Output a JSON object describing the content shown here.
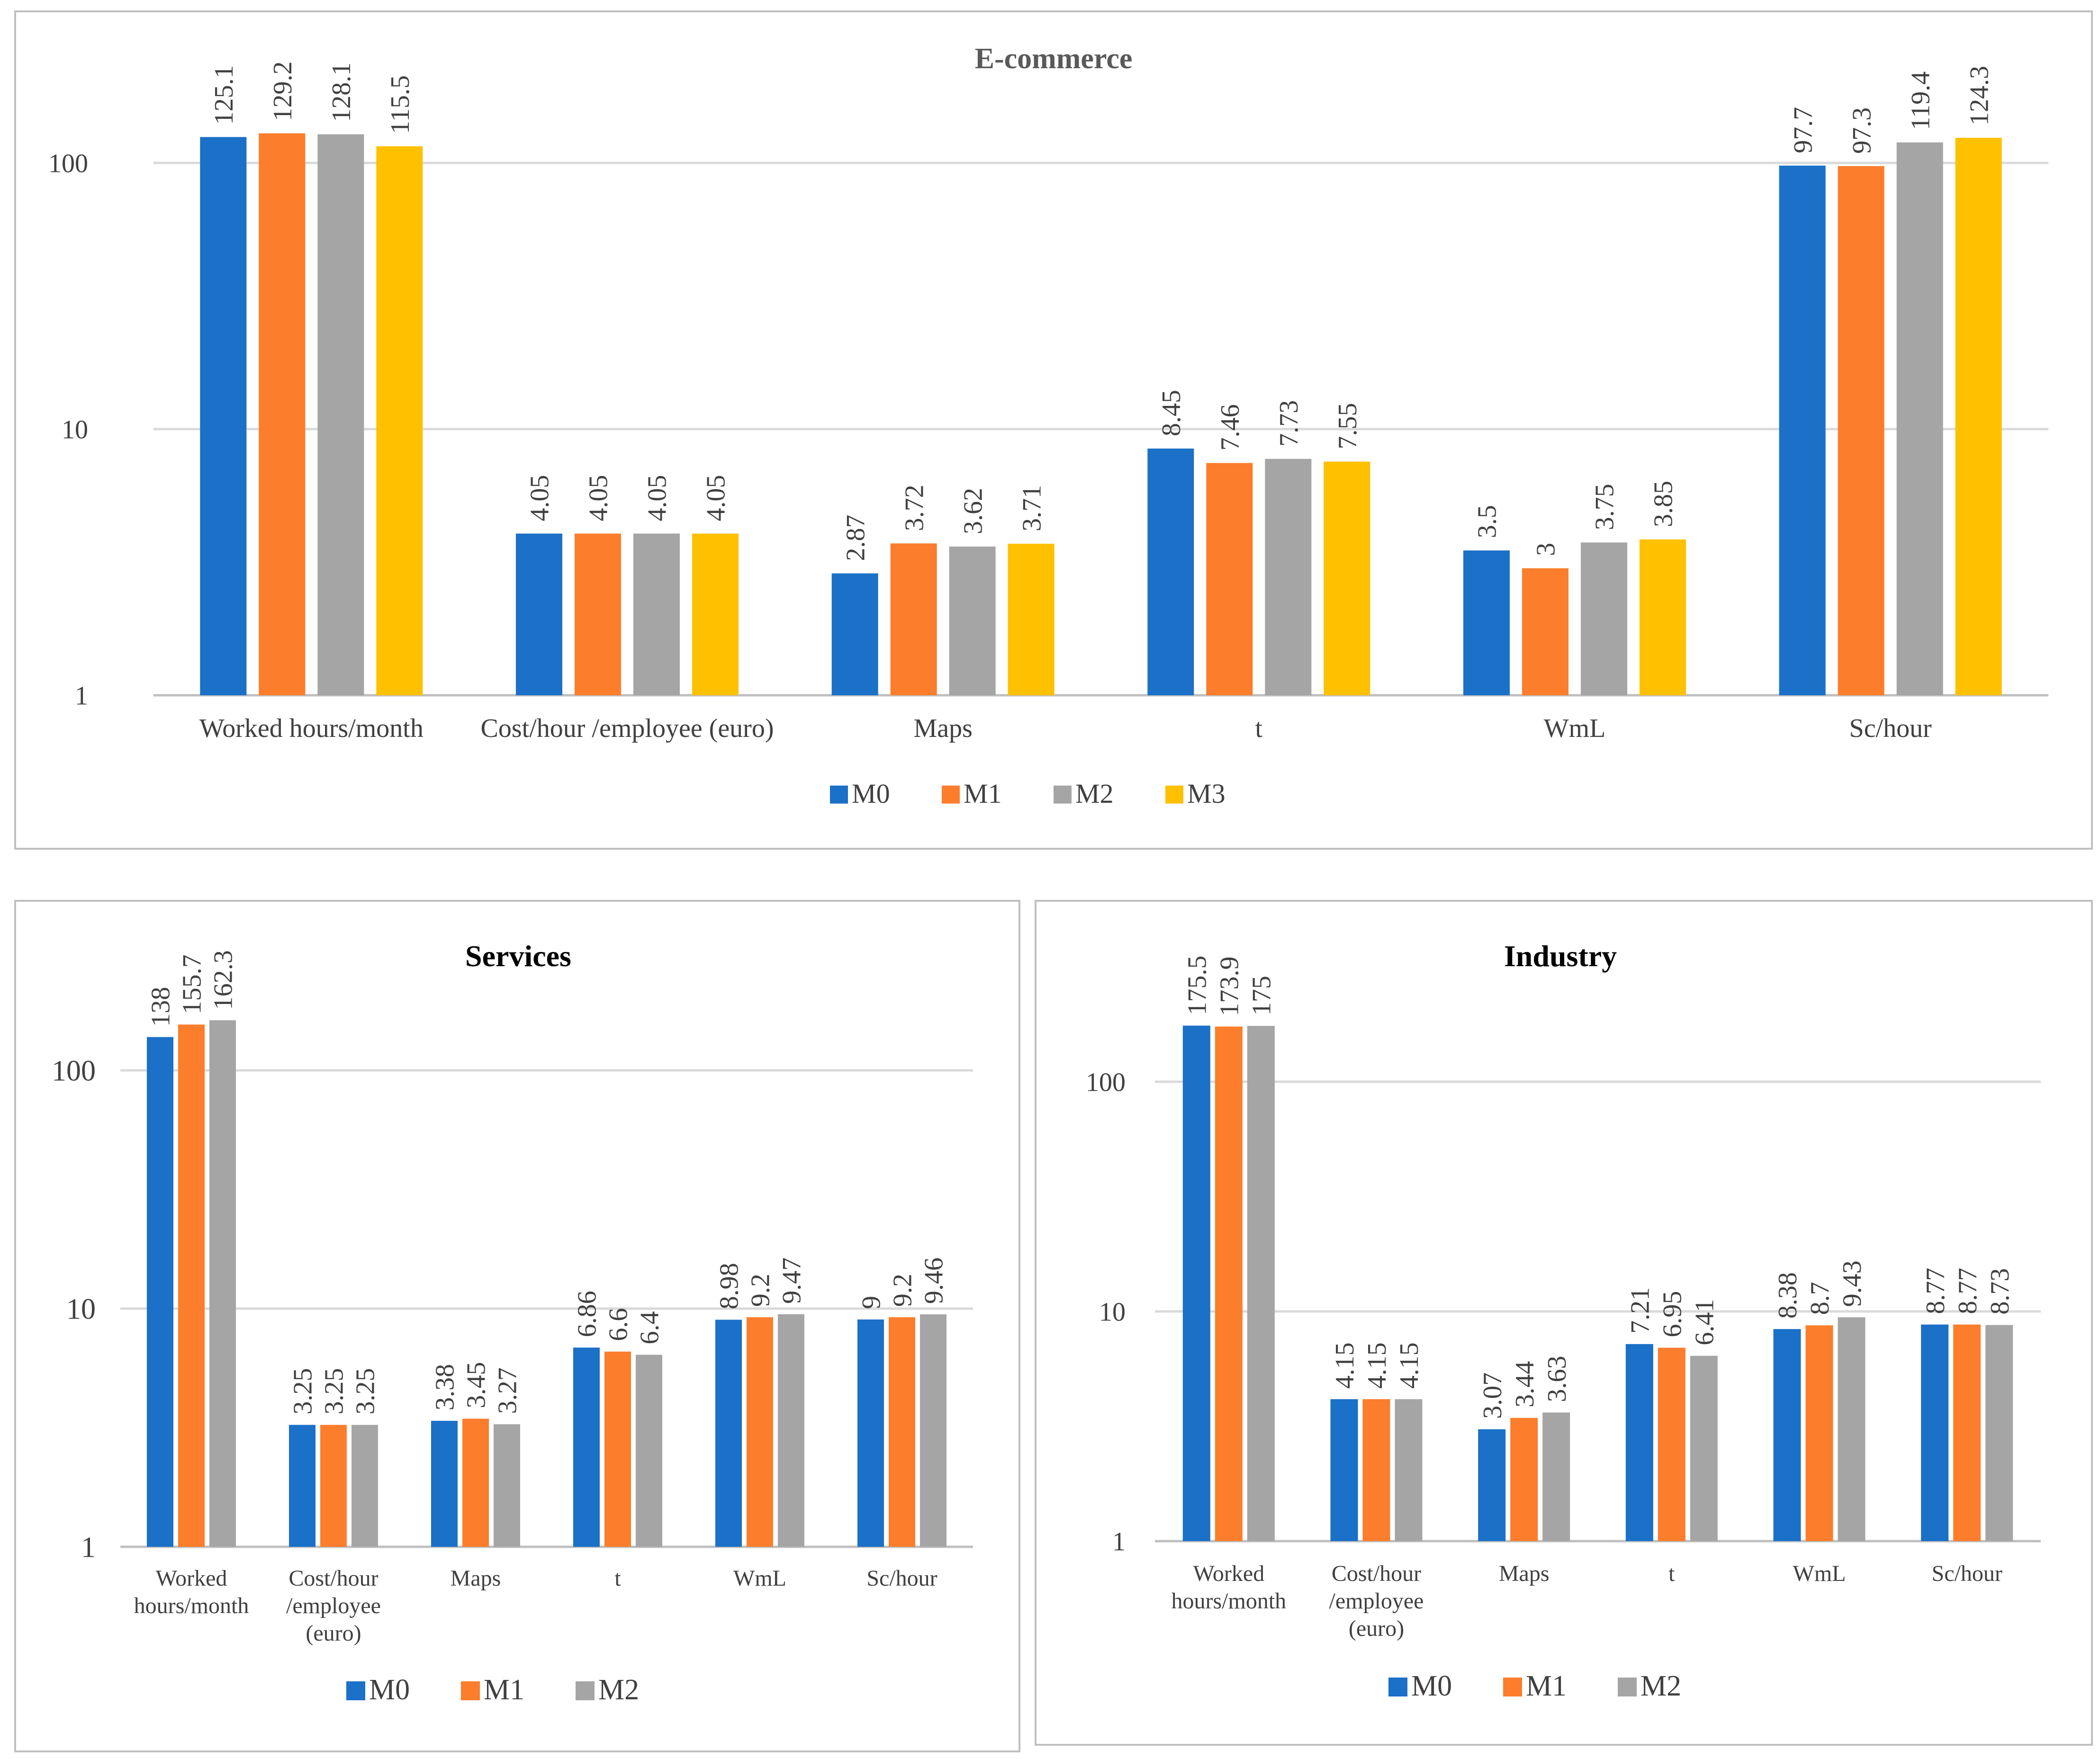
{
  "colors": {
    "M0": "#1b70c7",
    "M1": "#fc7d2c",
    "M2": "#a5a5a5",
    "M3": "#ffc000",
    "grid": "#d9d9d9",
    "text": "#404040",
    "title_ecom": "#595959"
  },
  "chart_data": [
    {
      "id": "ecom",
      "type": "bar",
      "title": "E-commerce",
      "yscale": "log",
      "ylim": [
        1,
        200
      ],
      "yticks": [
        1,
        10,
        100
      ],
      "ytick_labels": [
        "1",
        "10",
        "100"
      ],
      "categories": [
        "Worked hours/month",
        "Cost/hour /employee (euro)",
        "Maps",
        "t",
        "WmL",
        "Sc/hour"
      ],
      "series": [
        {
          "name": "M0",
          "values": [
            125.1,
            4.05,
            2.87,
            8.45,
            3.5,
            97.7
          ],
          "labels": [
            "125.1",
            "4.05",
            "2.87",
            "8.45",
            "3.5",
            "97.7"
          ]
        },
        {
          "name": "M1",
          "values": [
            129.2,
            4.05,
            3.72,
            7.46,
            3,
            97.3
          ],
          "labels": [
            "129.2",
            "4.05",
            "3.72",
            "7.46",
            "3",
            "97.3"
          ]
        },
        {
          "name": "M2",
          "values": [
            128.1,
            4.05,
            3.62,
            7.73,
            3.75,
            119.4
          ],
          "labels": [
            "128.1",
            "4.05",
            "3.62",
            "7.73",
            "3.75",
            "119.4"
          ]
        },
        {
          "name": "M3",
          "values": [
            115.5,
            4.05,
            3.71,
            7.55,
            3.85,
            124.3
          ],
          "labels": [
            "115.5",
            "4.05",
            "3.71",
            "7.55",
            "3.85",
            "124.3"
          ]
        }
      ],
      "legend": "bottom"
    },
    {
      "id": "serv",
      "type": "bar",
      "title": "Services",
      "yscale": "log",
      "ylim": [
        1,
        200
      ],
      "yticks": [
        1,
        10,
        100
      ],
      "ytick_labels": [
        "1",
        "10",
        "100"
      ],
      "categories": [
        "Worked hours/month",
        "Cost/hour /employee (euro)",
        "Maps",
        "t",
        "WmL",
        "Sc/hour"
      ],
      "category_lines": [
        [
          "Worked",
          "hours/month"
        ],
        [
          "Cost/hour",
          "/employee",
          "(euro)"
        ],
        [
          "Maps"
        ],
        [
          "t"
        ],
        [
          "WmL"
        ],
        [
          "Sc/hour"
        ]
      ],
      "series": [
        {
          "name": "M0",
          "values": [
            138,
            3.25,
            3.38,
            6.86,
            8.98,
            9
          ],
          "labels": [
            "138",
            "3.25",
            "3.38",
            "6.86",
            "8.98",
            "9"
          ]
        },
        {
          "name": "M1",
          "values": [
            155.7,
            3.25,
            3.45,
            6.6,
            9.2,
            9.2
          ],
          "labels": [
            "155.7",
            "3.25",
            "3.45",
            "6.6",
            "9.2",
            "9.2"
          ]
        },
        {
          "name": "M2",
          "values": [
            162.3,
            3.25,
            3.27,
            6.4,
            9.47,
            9.46
          ],
          "labels": [
            "162.3",
            "3.25",
            "3.27",
            "6.4",
            "9.47",
            "9.46"
          ]
        }
      ],
      "legend": "bottom"
    },
    {
      "id": "ind",
      "type": "bar",
      "title": "Industry",
      "yscale": "log",
      "ylim": [
        1,
        200
      ],
      "yticks": [
        1,
        10,
        100
      ],
      "ytick_labels": [
        "1",
        "10",
        "100"
      ],
      "categories": [
        "Worked hours/month",
        "Cost/hour /employee (euro)",
        "Maps",
        "t",
        "WmL",
        "Sc/hour"
      ],
      "category_lines": [
        [
          "Worked",
          "hours/month"
        ],
        [
          "Cost/hour",
          "/employee",
          "(euro)"
        ],
        [
          "Maps"
        ],
        [
          "t"
        ],
        [
          "WmL"
        ],
        [
          "Sc/hour"
        ]
      ],
      "series": [
        {
          "name": "M0",
          "values": [
            175.5,
            4.15,
            3.07,
            7.21,
            8.38,
            8.77
          ],
          "labels": [
            "175.5",
            "4.15",
            "3.07",
            "7.21",
            "8.38",
            "8.77"
          ]
        },
        {
          "name": "M1",
          "values": [
            173.9,
            4.15,
            3.44,
            6.95,
            8.7,
            8.77
          ],
          "labels": [
            "173.9",
            "4.15",
            "3.44",
            "6.95",
            "8.7",
            "8.77"
          ]
        },
        {
          "name": "M2",
          "values": [
            175,
            4.15,
            3.63,
            6.41,
            9.43,
            8.73
          ],
          "labels": [
            "175",
            "4.15",
            "3.63",
            "6.41",
            "9.43",
            "8.73"
          ]
        }
      ],
      "legend": "bottom"
    }
  ]
}
